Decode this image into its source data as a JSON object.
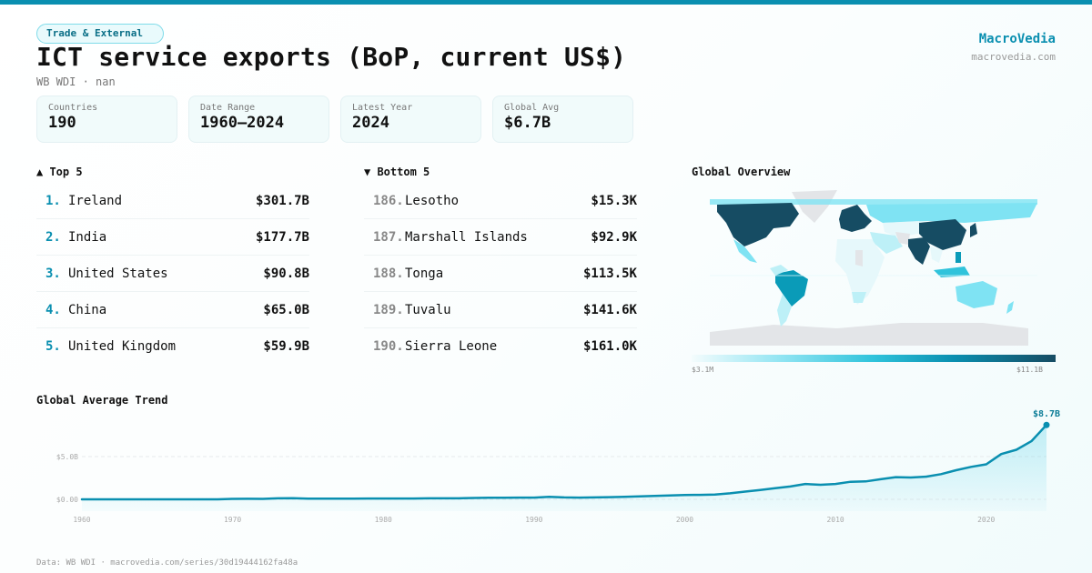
{
  "header": {
    "category_badge": "Trade & External",
    "title": "ICT service exports (BoP, current US$)",
    "subtitle": "WB WDI · nan",
    "brand_name": "MacroVedia",
    "brand_url": "macrovedia.com"
  },
  "stats": [
    {
      "label": "Countries",
      "value": "190"
    },
    {
      "label": "Date Range",
      "value": "1960–2024"
    },
    {
      "label": "Latest Year",
      "value": "2024"
    },
    {
      "label": "Global Avg",
      "value": "$6.7B"
    }
  ],
  "top5": {
    "title": "▲ Top 5",
    "items": [
      {
        "rank": "1.",
        "name": "Ireland",
        "value": "$301.7B"
      },
      {
        "rank": "2.",
        "name": "India",
        "value": "$177.7B"
      },
      {
        "rank": "3.",
        "name": "United States",
        "value": "$90.8B"
      },
      {
        "rank": "4.",
        "name": "China",
        "value": "$65.0B"
      },
      {
        "rank": "5.",
        "name": "United Kingdom",
        "value": "$59.9B"
      }
    ]
  },
  "bottom5": {
    "title": "▼ Bottom 5",
    "items": [
      {
        "rank": "186.",
        "name": "Lesotho",
        "value": "$15.3K"
      },
      {
        "rank": "187.",
        "name": "Marshall Islands",
        "value": "$92.9K"
      },
      {
        "rank": "188.",
        "name": "Tonga",
        "value": "$113.5K"
      },
      {
        "rank": "189.",
        "name": "Tuvalu",
        "value": "$141.6K"
      },
      {
        "rank": "190.",
        "name": "Sierra Leone",
        "value": "$161.0K"
      }
    ]
  },
  "map": {
    "title": "Global Overview",
    "legend_min": "$3.1M",
    "legend_max": "$11.1B",
    "colors": {
      "highest": "#164c63",
      "high": "#0a9bb8",
      "mid": "#7fe3f3",
      "low": "#e6f8fb",
      "no_data": "#e3e5e8"
    }
  },
  "trend": {
    "title": "Global Average Trend",
    "last_label": "$8.7B"
  },
  "chart_data": {
    "type": "area",
    "title": "Global Average Trend",
    "xlabel": "",
    "ylabel": "",
    "x_ticks": [
      "1960",
      "1970",
      "1980",
      "1990",
      "2000",
      "2010",
      "2020"
    ],
    "y_ticks": [
      "$0.00",
      "$5.0B"
    ],
    "ylim": [
      0,
      9
    ],
    "grid": true,
    "annotation": "$8.7B",
    "x": [
      1960,
      1961,
      1962,
      1963,
      1964,
      1965,
      1966,
      1967,
      1968,
      1969,
      1970,
      1971,
      1972,
      1973,
      1974,
      1975,
      1976,
      1977,
      1978,
      1979,
      1980,
      1981,
      1982,
      1983,
      1984,
      1985,
      1986,
      1987,
      1988,
      1989,
      1990,
      1991,
      1992,
      1993,
      1994,
      1995,
      1996,
      1997,
      1998,
      1999,
      2000,
      2001,
      2002,
      2003,
      2004,
      2005,
      2006,
      2007,
      2008,
      2009,
      2010,
      2011,
      2012,
      2013,
      2014,
      2015,
      2016,
      2017,
      2018,
      2019,
      2020,
      2021,
      2022,
      2023,
      2024
    ],
    "series": [
      {
        "name": "Global average (US$ B)",
        "values": [
          0.0,
          0.0,
          0.0,
          0.0,
          0.0,
          0.0,
          0.0,
          0.0,
          0.0,
          0.0,
          0.05,
          0.06,
          0.05,
          0.12,
          0.13,
          0.08,
          0.08,
          0.09,
          0.09,
          0.1,
          0.1,
          0.1,
          0.1,
          0.12,
          0.12,
          0.12,
          0.16,
          0.18,
          0.18,
          0.2,
          0.2,
          0.3,
          0.22,
          0.2,
          0.22,
          0.26,
          0.3,
          0.35,
          0.4,
          0.45,
          0.5,
          0.52,
          0.55,
          0.7,
          0.9,
          1.1,
          1.3,
          1.5,
          1.8,
          1.7,
          1.8,
          2.05,
          2.1,
          2.35,
          2.6,
          2.55,
          2.65,
          2.95,
          3.4,
          3.8,
          4.1,
          5.3,
          5.8,
          6.8,
          8.7
        ]
      }
    ]
  },
  "footer": {
    "text": "Data: WB WDI · macrovedia.com/series/30d19444162fa48a"
  }
}
